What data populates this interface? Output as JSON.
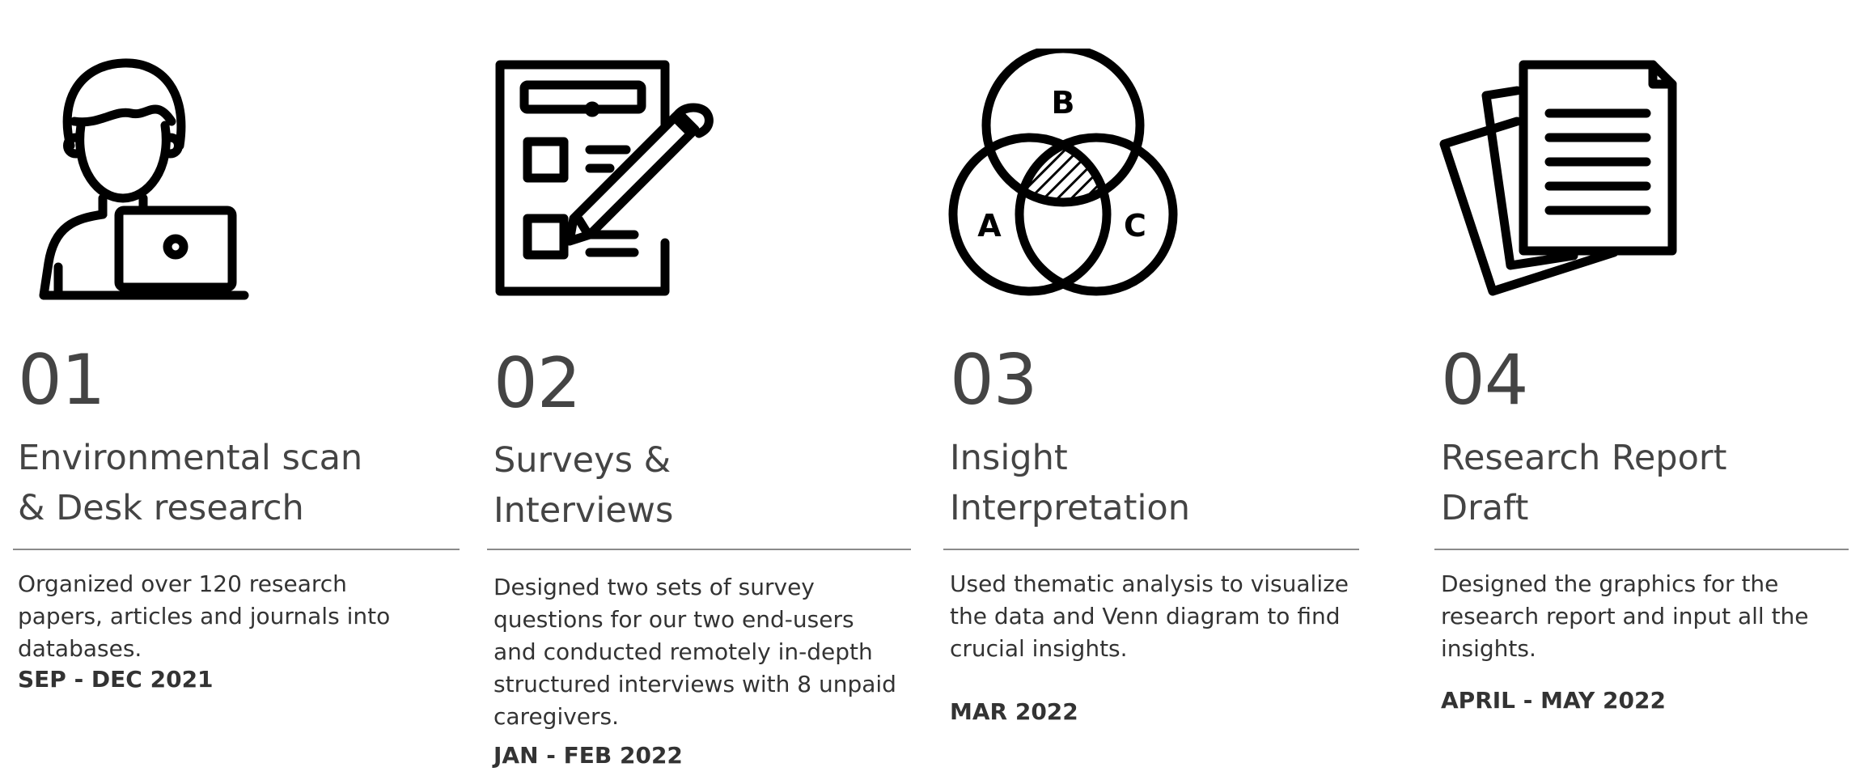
{
  "steps": [
    {
      "number": "01",
      "title_line1": "Environmental scan",
      "title_line2": "& Desk research",
      "description": "Organized over 120 research papers, articles and journals into databases.",
      "date": "SEP - DEC 2021",
      "icon": "person-with-laptop-icon"
    },
    {
      "number": "02",
      "title_line1": "Surveys &",
      "title_line2": "Interviews",
      "description": "Designed two sets of survey questions for our two end-users and conducted remotely in-depth structured interviews with 8 unpaid caregivers.",
      "date": "JAN - FEB 2022",
      "icon": "survey-checklist-icon"
    },
    {
      "number": "03",
      "title_line1": "Insight",
      "title_line2": "Interpretation",
      "description": "Used thematic analysis to visualize the data and Venn diagram to find crucial insights.",
      "date": "MAR 2022",
      "icon": "venn-diagram-icon",
      "venn_labels": [
        "B",
        "A",
        "C"
      ]
    },
    {
      "number": "04",
      "title_line1": "Research Report",
      "title_line2": "Draft",
      "description": "Designed the graphics for the research report and input all the insights.",
      "date": "APRIL - MAY 2022",
      "icon": "documents-stack-icon"
    }
  ]
}
